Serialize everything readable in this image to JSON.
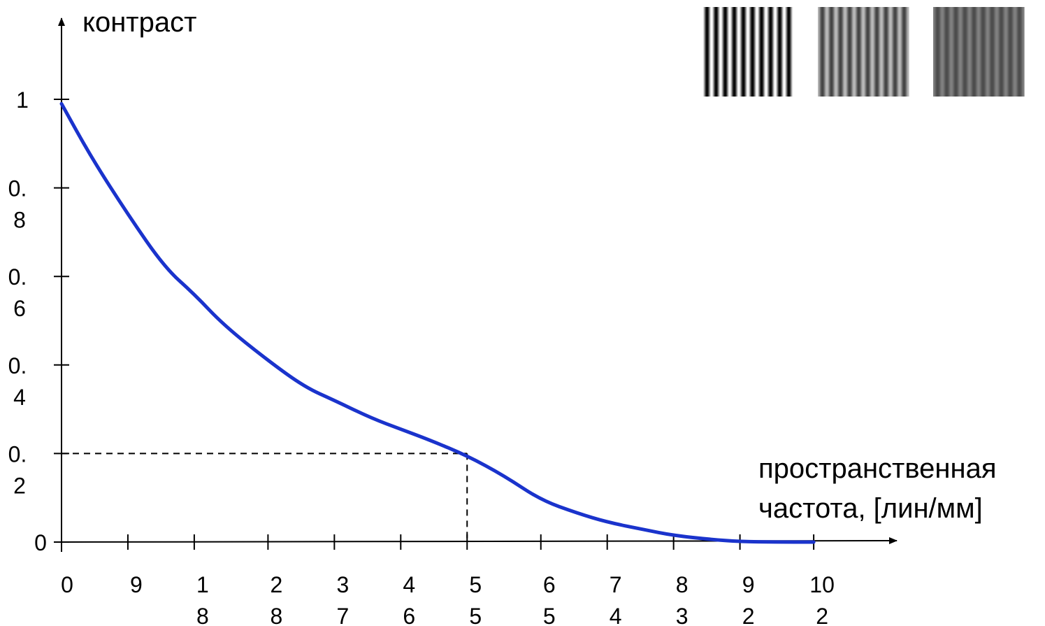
{
  "chart_data": {
    "type": "line",
    "ylabel": "контраст",
    "xlabel_lines": [
      "пространственная",
      "частота, [лин/мм]"
    ],
    "x_ticks": [
      {
        "value": 0,
        "label": [
          "0"
        ]
      },
      {
        "value": 9,
        "label": [
          "9"
        ]
      },
      {
        "value": 18,
        "label": [
          "1",
          "8"
        ]
      },
      {
        "value": 28,
        "label": [
          "2",
          "8"
        ]
      },
      {
        "value": 37,
        "label": [
          "3",
          "7"
        ]
      },
      {
        "value": 46,
        "label": [
          "4",
          "6"
        ]
      },
      {
        "value": 55,
        "label": [
          "5",
          "5"
        ]
      },
      {
        "value": 65,
        "label": [
          "6",
          "5"
        ]
      },
      {
        "value": 74,
        "label": [
          "7",
          "4"
        ]
      },
      {
        "value": 83,
        "label": [
          "8",
          "3"
        ]
      },
      {
        "value": 92,
        "label": [
          "9",
          "2"
        ]
      },
      {
        "value": 102,
        "label": [
          "10",
          "2"
        ]
      }
    ],
    "y_ticks": [
      {
        "value": 0,
        "label": [
          "0"
        ]
      },
      {
        "value": 0.2,
        "label": [
          "0.",
          "2"
        ]
      },
      {
        "value": 0.4,
        "label": [
          "0.",
          "4"
        ]
      },
      {
        "value": 0.6,
        "label": [
          "0.",
          "6"
        ]
      },
      {
        "value": 0.8,
        "label": [
          "0.",
          "8"
        ]
      },
      {
        "value": 1,
        "label": [
          "1"
        ]
      }
    ],
    "xlim": [
      0,
      115
    ],
    "ylim": [
      0,
      1.2
    ],
    "series": [
      {
        "color": "#1a33cc",
        "x": [
          0,
          4,
          9,
          14,
          18,
          22,
          28,
          33,
          37,
          42,
          46,
          50,
          55,
          60,
          65,
          70,
          74,
          79,
          83,
          88,
          92,
          97,
          102
        ],
        "y": [
          0.99,
          0.87,
          0.74,
          0.62,
          0.56,
          0.49,
          0.41,
          0.35,
          0.32,
          0.28,
          0.255,
          0.23,
          0.195,
          0.15,
          0.095,
          0.065,
          0.045,
          0.028,
          0.015,
          0.006,
          0.001,
          0.0,
          0.0
        ]
      }
    ],
    "reference_point": {
      "x": 55,
      "y": 0.2
    },
    "gratings": [
      {
        "name": "high-contrast-grating",
        "contrast": 1.0
      },
      {
        "name": "medium-contrast-grating",
        "contrast": 0.5
      },
      {
        "name": "low-contrast-grating",
        "contrast": 0.3
      }
    ]
  }
}
